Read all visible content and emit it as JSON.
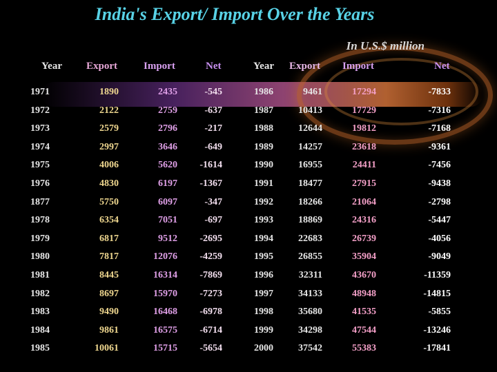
{
  "title": "India's Export/ Import Over the Years",
  "unit_note": "In U.S.$ million",
  "colors": {
    "title": "#58d2e6",
    "year": "#e8e8e8",
    "export": "#f0d890",
    "import": "#e0a0e8",
    "net_left": "#f4e0f0",
    "export_right": "#e8e8e8",
    "import_right": "#f4a0c8",
    "net_right": "#ffffff"
  },
  "headers": {
    "year": "Year",
    "export": "Export",
    "import": "Import",
    "net": "Net",
    "year2": "Year",
    "export2": "Export",
    "import2": "Import",
    "net2": "Net"
  },
  "rows": [
    {
      "year": "1971",
      "export": "1890",
      "import": "2435",
      "net": "-545",
      "year2": "1986",
      "export2": "9461",
      "import2": "17294",
      "net2": "-7833"
    },
    {
      "year": "1972",
      "export": "2122",
      "import": "2759",
      "net": "-637",
      "year2": "1987",
      "export2": "10413",
      "import2": "17729",
      "net2": "-7316"
    },
    {
      "year": "1973",
      "export": "2579",
      "import": "2796",
      "net": "-217",
      "year2": "1988",
      "export2": "12644",
      "import2": "19812",
      "net2": "-7168"
    },
    {
      "year": "1974",
      "export": "2997",
      "import": "3646",
      "net": "-649",
      "year2": "1989",
      "export2": "14257",
      "import2": "23618",
      "net2": "-9361"
    },
    {
      "year": "1975",
      "export": "4006",
      "import": "5620",
      "net": "-1614",
      "year2": "1990",
      "export2": "16955",
      "import2": "24411",
      "net2": "-7456"
    },
    {
      "year": "1976",
      "export": "4830",
      "import": "6197",
      "net": "-1367",
      "year2": "1991",
      "export2": "18477",
      "import2": "27915",
      "net2": "-9438"
    },
    {
      "year": "1877",
      "export": "5750",
      "import": "6097",
      "net": "-347",
      "year2": "1992",
      "export2": "18266",
      "import2": "21064",
      "net2": "-2798"
    },
    {
      "year": "1978",
      "export": "6354",
      "import": "7051",
      "net": "-697",
      "year2": "1993",
      "export2": "18869",
      "import2": "24316",
      "net2": "-5447"
    },
    {
      "year": "1979",
      "export": "6817",
      "import": "9512",
      "net": "-2695",
      "year2": "1994",
      "export2": "22683",
      "import2": "26739",
      "net2": "-4056"
    },
    {
      "year": "1980",
      "export": "7817",
      "import": "12076",
      "net": "-4259",
      "year2": "1995",
      "export2": "26855",
      "import2": "35904",
      "net2": "-9049"
    },
    {
      "year": "1981",
      "export": "8445",
      "import": "16314",
      "net": "-7869",
      "year2": "1996",
      "export2": "32311",
      "import2": "43670",
      "net2": "-11359"
    },
    {
      "year": "1982",
      "export": "8697",
      "import": "15970",
      "net": "-7273",
      "year2": "1997",
      "export2": "34133",
      "import2": "48948",
      "net2": "-14815"
    },
    {
      "year": "1983",
      "export": "9490",
      "import": "16468",
      "net": "-6978",
      "year2": "1998",
      "export2": "35680",
      "import2": "41535",
      "net2": "-5855"
    },
    {
      "year": "1984",
      "export": "9861",
      "import": "16575",
      "net": "-6714",
      "year2": "1999",
      "export2": "34298",
      "import2": "47544",
      "net2": "-13246"
    },
    {
      "year": "1985",
      "export": "10061",
      "import": "15715",
      "net": "-5654",
      "year2": "2000",
      "export2": "37542",
      "import2": "55383",
      "net2": "-17841"
    }
  ]
}
